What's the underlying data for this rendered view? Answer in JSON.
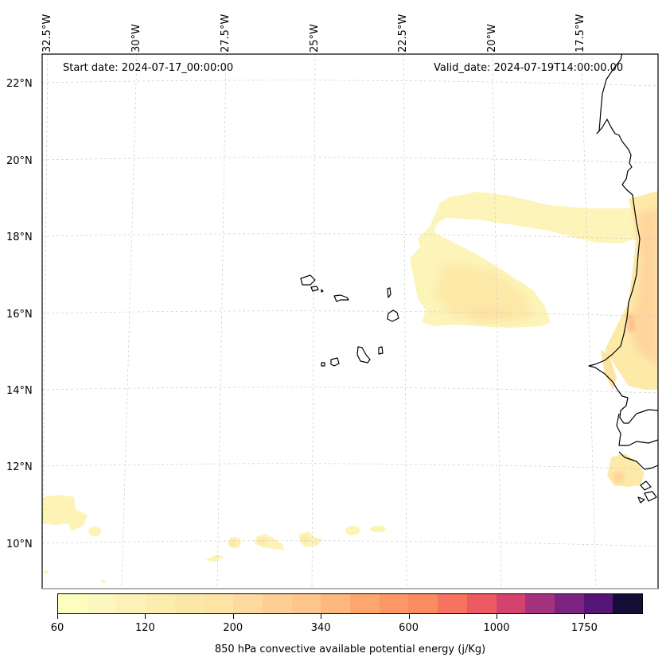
{
  "map": {
    "start_date": "Start date: 2024-07-17_00:00:00",
    "valid_date": "Valid_date: 2024-07-19T14:00:00.00",
    "variable": "850 hPa convective available potential energy (j/Kg)",
    "longitude_labels": [
      "32.5°W",
      "30°W",
      "27.5°W",
      "25°W",
      "22.5°W",
      "20°W",
      "17.5°W"
    ],
    "latitude_labels": [
      "22°N",
      "20°N",
      "18°N",
      "16°N",
      "14°N",
      "12°N",
      "10°N"
    ],
    "extent": {
      "lon_min": -32.6,
      "lon_max": -15.2,
      "lat_min": 9.0,
      "lat_max": 22.7
    },
    "features": [
      "Cape Verde islands",
      "West African coastline (Mauritania, Senegal, Gambia, Guinea-Bissau)"
    ]
  },
  "colorbar": {
    "tick_labels": [
      "60",
      "120",
      "200",
      "340",
      "600",
      "1000",
      "1750"
    ],
    "tick_positions_bin_index": [
      0,
      3,
      6,
      9,
      12,
      15,
      18
    ],
    "colors": [
      "#fcfdbf",
      "#fcf7c0",
      "#fcf1b7",
      "#fcedaf",
      "#fbe8a9",
      "#fde3a4",
      "#fed9a0",
      "#fecf94",
      "#fec68c",
      "#feb87d",
      "#fda76f",
      "#fc9866",
      "#fb8c62",
      "#f6735f",
      "#ed5a61",
      "#d3436e",
      "#a4327e",
      "#7c2382",
      "#551577",
      "#140e36"
    ]
  },
  "chart_data": {
    "type": "heatmap",
    "title": "",
    "colorbar_label": "850 hPa convective available potential energy (j/Kg)",
    "levels": [
      60,
      80,
      100,
      120,
      145,
      170,
      200,
      240,
      280,
      340,
      420,
      500,
      600,
      720,
      850,
      1000,
      1250,
      1500,
      1750,
      2000
    ],
    "regions": [
      {
        "name": "northern band ~18-19°N from 22°W to coast",
        "approx_value": 100
      },
      {
        "name": "blob south of band ~16-17°N, 21-22.5°W",
        "approx_value": 120
      },
      {
        "name": "Mauritania/Senegal coast ~15-18°N",
        "approx_value": 250
      },
      {
        "name": "local maximum near 15.7°N 16.3°W",
        "approx_value": 400
      },
      {
        "name": "Guinea-Bissau offshore ~11.5°N",
        "approx_value": 200
      },
      {
        "name": "scattered cells ~10-11°N",
        "approx_value": 100
      }
    ]
  }
}
